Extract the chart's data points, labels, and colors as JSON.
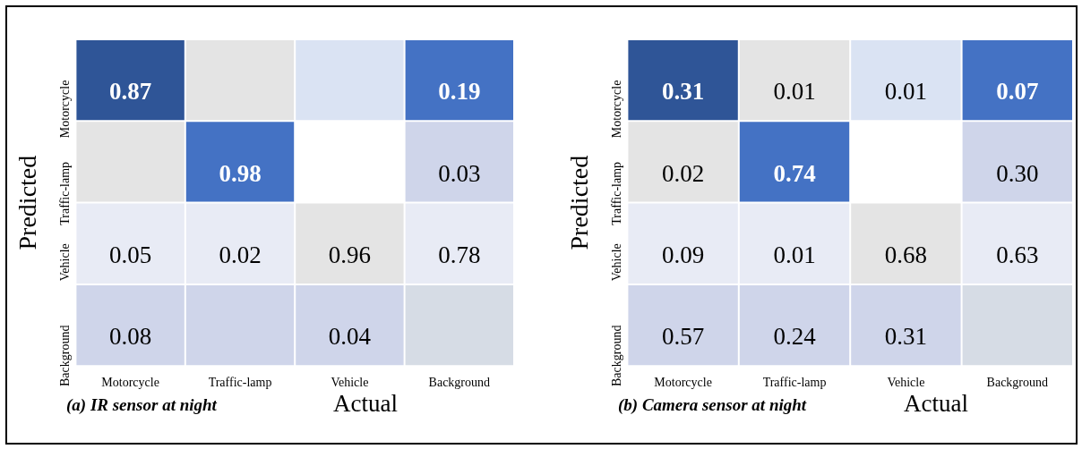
{
  "chart_data": [
    {
      "type": "heatmap",
      "title": "(a) IR sensor at night",
      "xlabel": "Actual",
      "ylabel": "Predicted",
      "data_labels": true,
      "categories": [
        "Motorcycle",
        "Traffic-lamp",
        "Vehicle",
        "Background"
      ],
      "y_categories": [
        "Motorcycle",
        "Traffic-lamp",
        "Vehicle",
        "Background"
      ],
      "cells": [
        [
          0.87,
          null,
          null,
          0.19
        ],
        [
          null,
          0.98,
          null,
          0.03
        ],
        [
          0.05,
          0.02,
          0.96,
          0.78
        ],
        [
          0.08,
          null,
          0.04,
          null
        ]
      ],
      "cell_labels": [
        [
          "0.87",
          null,
          null,
          "0.19"
        ],
        [
          null,
          "0.98",
          null,
          "0.03"
        ],
        [
          "0.05",
          "0.02",
          "0.96",
          "0.78"
        ],
        [
          "0.08",
          null,
          "0.04",
          null
        ]
      ],
      "colors": [
        [
          "#2f5597",
          "#e4e4e4",
          "#dae3f3",
          "#4472c4"
        ],
        [
          "#e4e4e4",
          "#4472c4",
          "#ffffff",
          "#cfd5ea"
        ],
        [
          "#e8ebf5",
          "#e8ebf5",
          "#e4e4e4",
          "#e8ebf5"
        ],
        [
          "#cfd5ea",
          "#cfd5ea",
          "#cfd5ea",
          "#d6dce5"
        ]
      ]
    },
    {
      "type": "heatmap",
      "title": "(b) Camera sensor at night",
      "xlabel": "Actual",
      "ylabel": "Predicted",
      "data_labels": true,
      "categories": [
        "Motorcycle",
        "Traffic-lamp",
        "Vehicle",
        "Background"
      ],
      "y_categories": [
        "Motorcycle",
        "Traffic-lamp",
        "Vehicle",
        "Background"
      ],
      "cells": [
        [
          0.31,
          0.01,
          0.01,
          0.07
        ],
        [
          0.02,
          0.74,
          null,
          0.3
        ],
        [
          0.09,
          0.01,
          0.68,
          0.63
        ],
        [
          0.57,
          0.24,
          0.31,
          null
        ]
      ],
      "cell_labels": [
        [
          "0.31",
          "0.01",
          "0.01",
          "0.07"
        ],
        [
          "0.02",
          "0.74",
          null,
          "0.30"
        ],
        [
          "0.09",
          "0.01",
          "0.68",
          "0.63"
        ],
        [
          "0.57",
          "0.24",
          "0.31",
          null
        ]
      ],
      "colors": [
        [
          "#2f5597",
          "#e4e4e4",
          "#dae3f3",
          "#4472c4"
        ],
        [
          "#e4e4e4",
          "#4472c4",
          "#ffffff",
          "#cfd5ea"
        ],
        [
          "#e8ebf5",
          "#e8ebf5",
          "#e4e4e4",
          "#e8ebf5"
        ],
        [
          "#cfd5ea",
          "#cfd5ea",
          "#cfd5ea",
          "#d6dce5"
        ]
      ]
    }
  ]
}
